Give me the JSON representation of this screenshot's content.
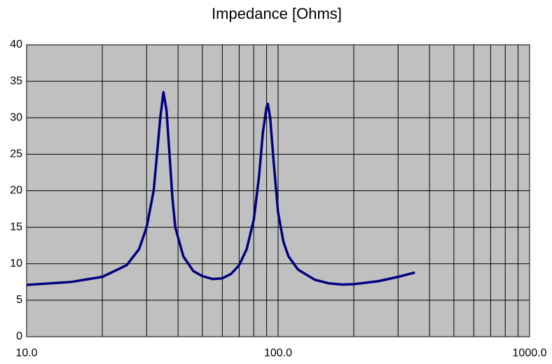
{
  "chart_data": {
    "type": "line",
    "title": "Impedance [Ohms]",
    "x": [
      10,
      15,
      20,
      25,
      28,
      30,
      32,
      33,
      34,
      35,
      36,
      37,
      38,
      39,
      42,
      46,
      50,
      55,
      60,
      65,
      70,
      75,
      80,
      84,
      87,
      90,
      91,
      93,
      96,
      100,
      105,
      110,
      120,
      140,
      160,
      180,
      200,
      250,
      300,
      350
    ],
    "series": [
      {
        "color": "#000080",
        "values": [
          7.1,
          7.5,
          8.2,
          9.8,
          12,
          15,
          20,
          25,
          30,
          33.5,
          31,
          25,
          19,
          15,
          11,
          9,
          8.3,
          7.9,
          8,
          8.6,
          9.8,
          12,
          16,
          22,
          28,
          31.5,
          31.9,
          30,
          24,
          17,
          13,
          11,
          9.2,
          7.8,
          7.3,
          7.15,
          7.2,
          7.6,
          8.2,
          8.8
        ]
      }
    ],
    "xscale": "log",
    "xlim": [
      10,
      1000
    ],
    "xticks": [
      {
        "value": 10,
        "label": "10.0"
      },
      {
        "value": 100,
        "label": "100.0"
      },
      {
        "value": 1000,
        "label": "1000.0"
      }
    ],
    "xgrid_minor": [
      20,
      30,
      40,
      50,
      60,
      70,
      80,
      90,
      200,
      300,
      400,
      500,
      600,
      700,
      800,
      900
    ],
    "ylim": [
      0,
      40
    ],
    "yticks": [
      0,
      5,
      10,
      15,
      20,
      25,
      30,
      35,
      40
    ],
    "grid": true,
    "plot_background": "#c0c0c0"
  }
}
